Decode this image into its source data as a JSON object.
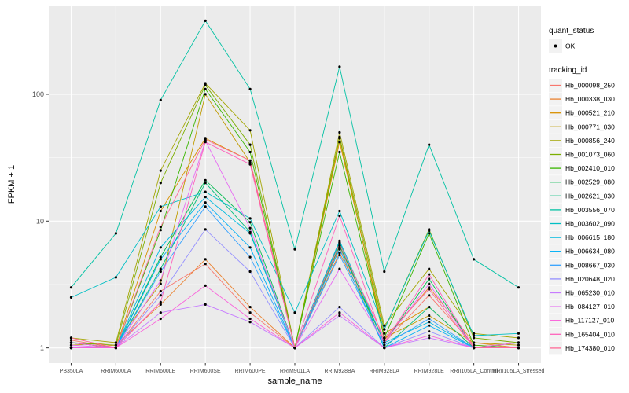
{
  "chart_data": {
    "type": "line",
    "title": "",
    "xlabel": "sample_name",
    "ylabel": "FPKM + 1",
    "y_scale": "log10",
    "y_ticks": [
      1,
      10,
      100
    ],
    "y_minor_ticks": [
      3.1623,
      31.623,
      316.23
    ],
    "ylim": [
      0.76,
      575
    ],
    "grid": true,
    "legend_position": "right",
    "colors": {
      "panel_bg": "#EBEBEB",
      "grid": "#FFFFFF",
      "key_bg": "#F2F2F2",
      "tick_label": "#4D4D4D",
      "tick_mark": "#333333",
      "point": "#000000"
    },
    "categories": [
      "PB350LA",
      "RRIM600LA",
      "RRIM600LE",
      "RRIM600SE",
      "RRIM600PE",
      "RRIM901LA",
      "RRIM928BA",
      "RRIM928LA",
      "RRIM928LE",
      "RRII105LA_Control",
      "RRII105LA_Stressed"
    ],
    "quant_status_legend": {
      "title": "quant_status",
      "items": [
        {
          "label": "OK",
          "marker": "point",
          "color": "#000000"
        }
      ]
    },
    "tracking_id_legend_title": "tracking_id",
    "series": [
      {
        "name": "Hb_000098_250",
        "color": "#F8766D",
        "values": [
          1.15,
          1.0,
          2.8,
          4.6,
          1.9,
          1.0,
          6.2,
          1.1,
          2.6,
          1.05,
          1.0
        ]
      },
      {
        "name": "Hb_000338_030",
        "color": "#EA8331",
        "values": [
          1.0,
          1.05,
          2.2,
          5.0,
          2.1,
          1.0,
          5.6,
          1.15,
          3.0,
          1.1,
          1.0
        ]
      },
      {
        "name": "Hb_000521_210",
        "color": "#D89000",
        "values": [
          1.1,
          1.0,
          12,
          45,
          30,
          1.0,
          42,
          1.3,
          2.1,
          1.0,
          1.0
        ]
      },
      {
        "name": "Hb_000771_030",
        "color": "#C09B00",
        "values": [
          1.05,
          1.1,
          3.2,
          100,
          29,
          1.0,
          45,
          1.2,
          1.8,
          1.1,
          1.05
        ]
      },
      {
        "name": "Hb_000856_240",
        "color": "#A3A500",
        "values": [
          1.2,
          1.1,
          25,
          122,
          52,
          1.0,
          50,
          1.5,
          4.2,
          1.3,
          1.2
        ]
      },
      {
        "name": "Hb_001073_060",
        "color": "#7CAE00",
        "values": [
          1.1,
          1.05,
          20,
          118,
          40,
          1.0,
          46,
          1.4,
          8.6,
          1.2,
          1.1
        ]
      },
      {
        "name": "Hb_002410_010",
        "color": "#39B600",
        "values": [
          1.0,
          1.0,
          8.5,
          110,
          35,
          1.0,
          35,
          1.2,
          8.0,
          1.05,
          1.0
        ]
      },
      {
        "name": "Hb_002529_080",
        "color": "#00BB4E",
        "values": [
          1.1,
          1.0,
          5.2,
          21,
          9.8,
          1.0,
          6.4,
          1.1,
          3.5,
          1.0,
          1.1
        ]
      },
      {
        "name": "Hb_002621_030",
        "color": "#00BF7D",
        "values": [
          1.0,
          1.0,
          4.2,
          20,
          8.2,
          1.0,
          6.8,
          1.0,
          2.1,
          1.0,
          1.0
        ]
      },
      {
        "name": "Hb_003556_070",
        "color": "#00C1A3",
        "values": [
          3.0,
          8.0,
          90,
          380,
          110,
          6.0,
          165,
          4.0,
          40,
          5.0,
          3.0
        ]
      },
      {
        "name": "Hb_003602_090",
        "color": "#00BFC4",
        "values": [
          2.5,
          3.6,
          13,
          17,
          10.5,
          1.9,
          12,
          1.4,
          8.4,
          1.25,
          1.3
        ]
      },
      {
        "name": "Hb_006615_180",
        "color": "#00BAE0",
        "values": [
          1.1,
          1.0,
          6.2,
          15.5,
          8.0,
          1.0,
          7.0,
          1.1,
          1.6,
          1.0,
          1.0
        ]
      },
      {
        "name": "Hb_006634_080",
        "color": "#00B0F6",
        "values": [
          1.0,
          1.0,
          5.0,
          14,
          6.2,
          1.0,
          6.0,
          1.0,
          1.5,
          1.0,
          1.0
        ]
      },
      {
        "name": "Hb_008667_030",
        "color": "#35A2FF",
        "values": [
          1.1,
          1.0,
          4.0,
          13,
          5.2,
          1.0,
          5.4,
          1.05,
          1.7,
          1.0,
          1.1
        ]
      },
      {
        "name": "Hb_020648_020",
        "color": "#9590FF",
        "values": [
          1.0,
          1.0,
          2.6,
          8.6,
          4.0,
          1.0,
          2.1,
          1.0,
          1.35,
          1.0,
          1.0
        ]
      },
      {
        "name": "Hb_065230_010",
        "color": "#C77CFF",
        "values": [
          1.0,
          1.0,
          1.9,
          2.2,
          1.6,
          1.0,
          1.8,
          1.0,
          1.2,
          1.0,
          1.0
        ]
      },
      {
        "name": "Hb_084127_010",
        "color": "#E76BF3",
        "values": [
          1.05,
          1.0,
          3.4,
          43,
          8.8,
          1.0,
          4.2,
          1.1,
          3.2,
          1.0,
          1.0
        ]
      },
      {
        "name": "Hb_117127_010",
        "color": "#FA62DB",
        "values": [
          1.0,
          1.0,
          1.7,
          3.1,
          1.7,
          1.0,
          1.9,
          1.0,
          1.25,
          1.0,
          1.0
        ]
      },
      {
        "name": "Hb_165404_010",
        "color": "#FF62BC",
        "values": [
          1.1,
          1.0,
          2.3,
          42,
          28,
          1.0,
          11,
          1.1,
          3.8,
          1.0,
          1.1
        ]
      },
      {
        "name": "Hb_174380_010",
        "color": "#FF6A98",
        "values": [
          1.2,
          1.0,
          9.0,
          44,
          30,
          1.0,
          6.6,
          1.2,
          2.9,
          1.0,
          1.0
        ]
      }
    ]
  }
}
